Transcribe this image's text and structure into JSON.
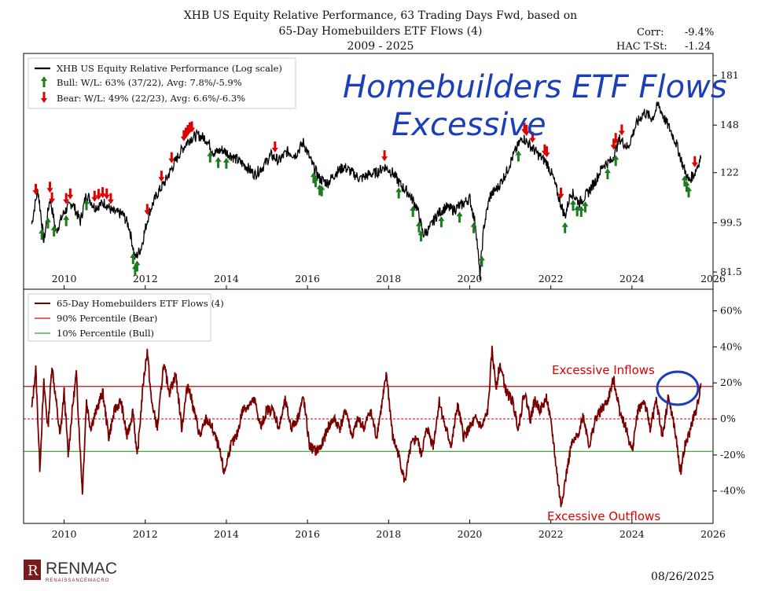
{
  "title": {
    "line1": "XHB US Equity Relative Performance, 63 Trading Days Fwd, based on",
    "line2": "65-Day Homebuilders ETF Flows (4)",
    "line3": "2009 - 2025"
  },
  "stats": {
    "corr_label": "Corr:",
    "corr_value": "-9.4%",
    "hac_label": "HAC T-St:",
    "hac_value": "-1.24"
  },
  "footer": {
    "logo_text": "RENMAC",
    "logo_sub": "RENAISSANCEMACRO",
    "date": "08/26/2025"
  },
  "colors": {
    "price": "#000000",
    "flows": "#7a0000",
    "bear_line": "#e00000",
    "bull_line": "#2ca02c",
    "bull_arrow": "#1e7a1e",
    "bear_arrow": "#e00000",
    "handwriting": "#1a3fb8",
    "annotation": "#e00000"
  },
  "handwriting": {
    "line1": "Homebuilders ETF Flows",
    "line2": "Excessive"
  },
  "annotations": {
    "inflows": "Excessive Inflows",
    "outflows": "Excessive Outflows"
  },
  "chart_data": [
    {
      "type": "line",
      "scale": "log",
      "ylim": [
        76,
        198
      ],
      "xlim": [
        2009.0,
        2026.0
      ],
      "yticks": [
        81.5,
        99.5,
        122,
        148,
        181
      ],
      "ytick_labels": [
        "81.5",
        "99.5",
        "122",
        "148",
        "181"
      ],
      "xticks": [
        2010,
        2012,
        2014,
        2016,
        2018,
        2020,
        2022,
        2024,
        2026
      ],
      "xtick_labels": [
        "2010",
        "2012",
        "2014",
        "2016",
        "2018",
        "2020",
        "2022",
        "2024",
        "2026"
      ],
      "legend": {
        "placement": "top-left",
        "series": "XHB US Equity Relative Performance (Log scale)",
        "bull": "Bull:  W/L: 63% (37/22), Avg: 7.8%/-5.9%",
        "bear": "Bear:  W/L: 49% (22/23), Avg: 6.6%/-6.3%"
      },
      "series": [
        {
          "name": "XHB US Equity Relative Performance (Log scale)",
          "x": [
            2009.2,
            2009.35,
            2009.5,
            2009.65,
            2009.8,
            2010.0,
            2010.2,
            2010.4,
            2010.55,
            2010.75,
            2011.0,
            2011.2,
            2011.45,
            2011.6,
            2011.75,
            2011.9,
            2012.1,
            2012.3,
            2012.5,
            2012.7,
            2012.9,
            2013.1,
            2013.3,
            2013.5,
            2013.7,
            2013.9,
            2014.1,
            2014.3,
            2014.5,
            2014.7,
            2014.9,
            2015.1,
            2015.3,
            2015.5,
            2015.7,
            2015.9,
            2016.1,
            2016.3,
            2016.5,
            2016.7,
            2016.9,
            2017.1,
            2017.3,
            2017.5,
            2017.7,
            2017.9,
            2018.1,
            2018.3,
            2018.5,
            2018.7,
            2018.85,
            2019.0,
            2019.2,
            2019.4,
            2019.6,
            2019.8,
            2020.0,
            2020.15,
            2020.25,
            2020.35,
            2020.5,
            2020.7,
            2020.9,
            2021.1,
            2021.3,
            2021.5,
            2021.7,
            2021.9,
            2022.05,
            2022.2,
            2022.35,
            2022.5,
            2022.7,
            2022.9,
            2023.1,
            2023.3,
            2023.5,
            2023.7,
            2023.9,
            2024.1,
            2024.3,
            2024.5,
            2024.65,
            2024.8,
            2024.95,
            2025.1,
            2025.25,
            2025.4,
            2025.55,
            2025.7
          ],
          "values": [
            99,
            114,
            92,
            110,
            96,
            104,
            108,
            100,
            112,
            106,
            108,
            104,
            103,
            98,
            86,
            90,
            104,
            112,
            118,
            126,
            134,
            140,
            142,
            140,
            132,
            134,
            131,
            128,
            125,
            121,
            125,
            131,
            128,
            133,
            131,
            138,
            127,
            119,
            117,
            122,
            125,
            122,
            119,
            121,
            122,
            125,
            122,
            116,
            112,
            106,
            95,
            97,
            103,
            106,
            105,
            107,
            110,
            98,
            80,
            98,
            111,
            115,
            122,
            132,
            141,
            136,
            131,
            127,
            120,
            110,
            102,
            113,
            108,
            112,
            118,
            126,
            128,
            140,
            135,
            148,
            156,
            152,
            161,
            152,
            145,
            137,
            126,
            118,
            122,
            130
          ]
        }
      ],
      "bull_signal_years": [
        2009.45,
        2009.6,
        2009.75,
        2010.05,
        2010.55,
        2011.7,
        2011.75,
        2011.8,
        2013.6,
        2013.8,
        2014.0,
        2016.15,
        2016.2,
        2016.3,
        2016.35,
        2018.25,
        2018.6,
        2018.75,
        2018.8,
        2019.3,
        2019.75,
        2020.1,
        2020.3,
        2021.2,
        2022.35,
        2022.55,
        2022.65,
        2022.75,
        2022.85,
        2023.4,
        2023.6,
        2025.3,
        2025.35,
        2025.4
      ],
      "bear_signal_years": [
        2009.3,
        2009.65,
        2009.7,
        2010.05,
        2010.15,
        2010.75,
        2010.85,
        2010.95,
        2011.05,
        2011.15,
        2012.05,
        2012.4,
        2012.65,
        2012.95,
        2013.0,
        2013.05,
        2013.1,
        2013.15,
        2015.2,
        2017.9,
        2021.35,
        2021.4,
        2021.55,
        2021.85,
        2021.9,
        2022.25,
        2023.55,
        2023.6,
        2023.75,
        2025.55
      ]
    },
    {
      "type": "line",
      "ylim": [
        -0.58,
        0.72
      ],
      "xlim": [
        2009.0,
        2026.0
      ],
      "yticks": [
        -0.4,
        -0.2,
        0.0,
        0.2,
        0.4,
        0.6
      ],
      "ytick_labels": [
        "-40%",
        "-20%",
        "0%",
        "20%",
        "40%",
        "60%"
      ],
      "xticks": [
        2010,
        2012,
        2014,
        2016,
        2018,
        2020,
        2022,
        2024,
        2026
      ],
      "xtick_labels": [
        "2010",
        "2012",
        "2014",
        "2016",
        "2018",
        "2020",
        "2022",
        "2024",
        "2026"
      ],
      "legend": {
        "placement": "top-left",
        "series": "65-Day Homebuilders ETF Flows (4)",
        "bear_line": "90% Percentile (Bear)",
        "bull_line": "10% Percentile (Bull)"
      },
      "bear_threshold": 0.18,
      "bull_threshold": -0.18,
      "zero_line": 0.0,
      "series": [
        {
          "name": "65-Day Homebuilders ETF Flows (4)",
          "x": [
            2009.2,
            2009.3,
            2009.4,
            2009.5,
            2009.6,
            2009.7,
            2009.8,
            2009.9,
            2010.0,
            2010.1,
            2010.2,
            2010.3,
            2010.45,
            2010.55,
            2010.65,
            2010.8,
            2010.95,
            2011.1,
            2011.25,
            2011.4,
            2011.55,
            2011.7,
            2011.8,
            2011.95,
            2012.05,
            2012.15,
            2012.3,
            2012.45,
            2012.6,
            2012.75,
            2012.9,
            2013.05,
            2013.2,
            2013.35,
            2013.5,
            2013.65,
            2013.8,
            2013.95,
            2014.1,
            2014.25,
            2014.4,
            2014.55,
            2014.7,
            2014.85,
            2015.0,
            2015.15,
            2015.3,
            2015.45,
            2015.6,
            2015.75,
            2015.9,
            2016.05,
            2016.2,
            2016.35,
            2016.5,
            2016.65,
            2016.8,
            2016.95,
            2017.1,
            2017.25,
            2017.4,
            2017.55,
            2017.7,
            2017.85,
            2017.95,
            2018.1,
            2018.25,
            2018.4,
            2018.55,
            2018.7,
            2018.8,
            2018.95,
            2019.1,
            2019.25,
            2019.4,
            2019.55,
            2019.7,
            2019.85,
            2020.0,
            2020.15,
            2020.3,
            2020.45,
            2020.55,
            2020.65,
            2020.75,
            2020.9,
            2021.05,
            2021.2,
            2021.35,
            2021.5,
            2021.6,
            2021.75,
            2021.9,
            2022.05,
            2022.15,
            2022.25,
            2022.35,
            2022.5,
            2022.65,
            2022.8,
            2022.95,
            2023.1,
            2023.25,
            2023.4,
            2023.55,
            2023.7,
            2023.85,
            2024.0,
            2024.15,
            2024.3,
            2024.45,
            2024.6,
            2024.75,
            2024.9,
            2025.05,
            2025.2,
            2025.3,
            2025.4,
            2025.5,
            2025.6,
            2025.7
          ],
          "values": [
            0.05,
            0.28,
            -0.27,
            0.2,
            -0.05,
            0.3,
            0.1,
            -0.1,
            0.15,
            -0.2,
            0.05,
            0.25,
            -0.41,
            0.1,
            -0.05,
            0.05,
            0.15,
            -0.1,
            0.05,
            0.1,
            -0.1,
            0.05,
            -0.22,
            0.2,
            0.38,
            0.1,
            -0.05,
            0.3,
            0.15,
            0.25,
            -0.05,
            0.2,
            0.05,
            -0.1,
            0.0,
            -0.05,
            -0.15,
            -0.3,
            -0.15,
            -0.1,
            0.05,
            0.08,
            0.1,
            -0.05,
            0.05,
            0.05,
            -0.05,
            0.1,
            -0.05,
            0.0,
            0.12,
            -0.15,
            -0.18,
            -0.15,
            -0.05,
            0.0,
            -0.05,
            0.05,
            -0.1,
            0.0,
            -0.05,
            0.05,
            -0.1,
            0.1,
            0.25,
            -0.1,
            -0.2,
            -0.35,
            -0.15,
            -0.1,
            -0.2,
            -0.05,
            -0.15,
            0.1,
            -0.05,
            -0.15,
            0.08,
            -0.1,
            -0.05,
            0.0,
            -0.05,
            0.05,
            0.38,
            0.18,
            0.3,
            0.15,
            0.1,
            -0.05,
            0.15,
            0.0,
            0.1,
            0.05,
            0.12,
            -0.1,
            -0.3,
            -0.48,
            -0.35,
            -0.15,
            -0.1,
            0.02,
            -0.15,
            0.0,
            0.05,
            0.1,
            0.22,
            0.05,
            -0.05,
            -0.18,
            0.05,
            0.1,
            -0.05,
            0.1,
            -0.1,
            0.12,
            -0.05,
            -0.3,
            -0.15,
            -0.1,
            0.0,
            0.05,
            0.2
          ]
        }
      ]
    }
  ]
}
